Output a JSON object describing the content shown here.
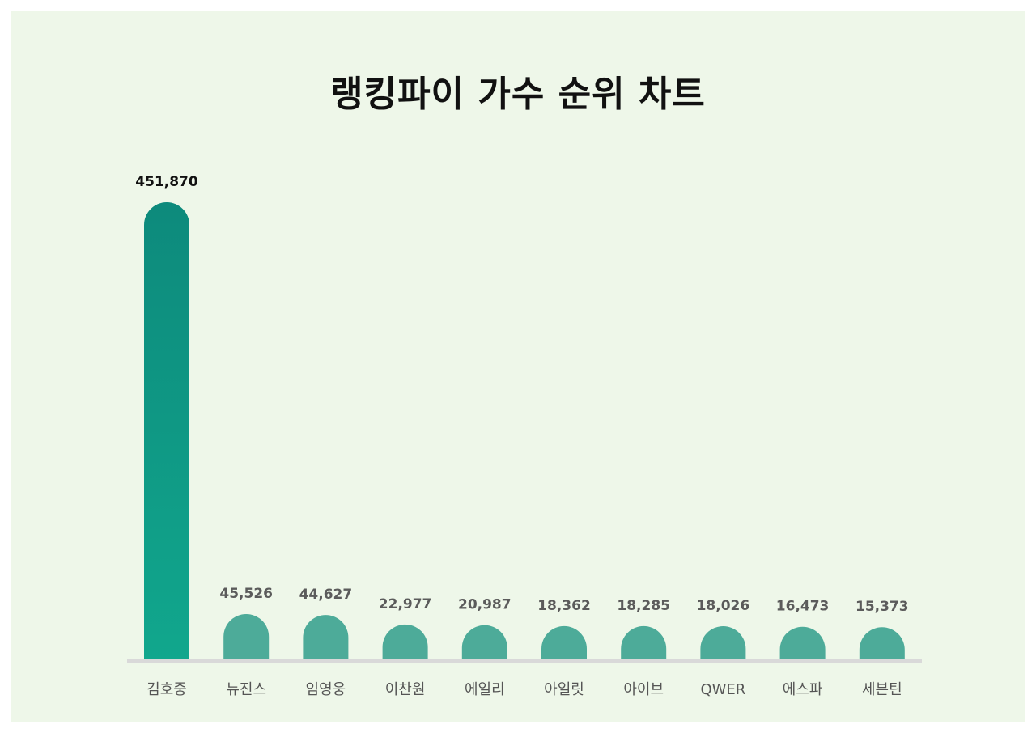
{
  "page": {
    "title": "랭킹파이 가수 순위 차트",
    "background": "#eef7e9"
  },
  "chart_data": {
    "type": "bar",
    "title": "랭킹파이 가수 순위 차트",
    "xlabel": "",
    "ylabel": "",
    "grid": false,
    "legend": "none",
    "categories": [
      "김호중",
      "뉴진스",
      "임영웅",
      "이찬원",
      "에일리",
      "아일릿",
      "아이브",
      "QWER",
      "에스파",
      "세븐틴"
    ],
    "value_labels": [
      "451,870",
      "45,526",
      "44,627",
      "22,977",
      "20,987",
      "18,362",
      "18,285",
      "18,026",
      "16,473",
      "15,373"
    ],
    "series": [
      {
        "values": [
          451870,
          45526,
          44627,
          22977,
          20987,
          18362,
          18285,
          18026,
          16473,
          15373
        ]
      }
    ],
    "colors": {
      "top_bar_start": "#0d8a7c",
      "top_bar_end": "#11a78d",
      "bar": "#4dab99",
      "baseline": "#d9d9d9",
      "top_label": "#111111",
      "label": "#5b5b5b",
      "category": "#555555"
    }
  }
}
